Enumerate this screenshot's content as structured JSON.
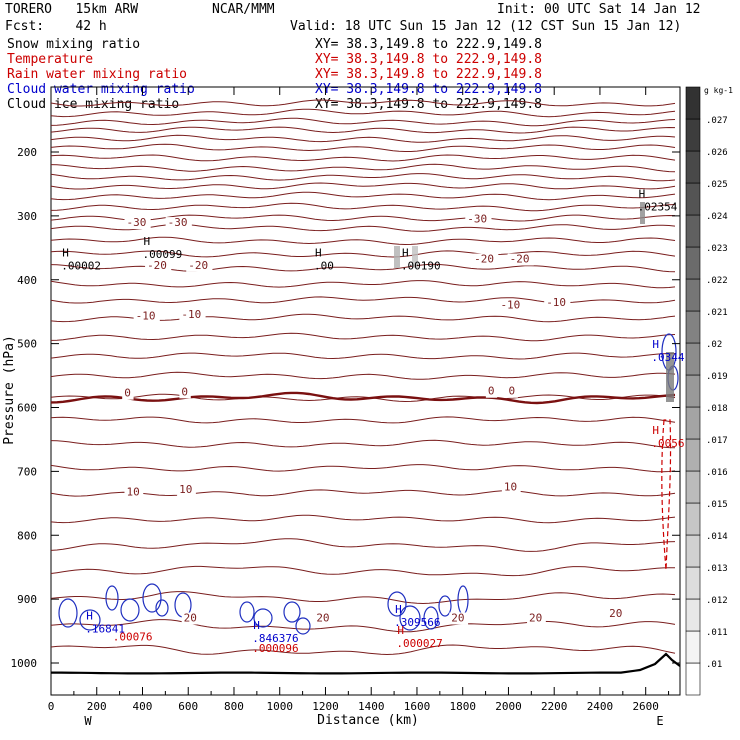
{
  "header": {
    "model": "TORERO   15km ARW",
    "center": "NCAR/MMM",
    "init": "Init: 00 UTC Sat 14 Jan 12",
    "fcst": "Fcst:    42 h",
    "valid": "Valid: 18 UTC Sun 15 Jan 12 (12 CST Sun 15 Jan 12)"
  },
  "fields": [
    {
      "label": "Snow mixing ratio",
      "xy": "XY=  38.3,149.8 to 222.9,149.8",
      "color": "#000000"
    },
    {
      "label": "Temperature",
      "xy": "XY=  38.3,149.8 to 222.9,149.8",
      "color": "#cc0000"
    },
    {
      "label": "Rain water mixing ratio",
      "xy": "XY=  38.3,149.8 to 222.9,149.8",
      "color": "#cc0000"
    },
    {
      "label": "Cloud water mixing ratio",
      "xy": "XY=  38.3,149.8 to 222.9,149.8",
      "color": "#0000cc"
    },
    {
      "label": "Cloud ice mixing ratio",
      "xy": "XY=  38.3,149.8 to 222.9,149.8",
      "color": "#000000"
    }
  ],
  "chart_data": {
    "type": "contour",
    "xlabel": "Distance (km)",
    "ylabel": "Pressure (hPa)",
    "xlim": [
      0,
      2750
    ],
    "ylim": [
      1050,
      100
    ],
    "x_ticks": [
      0,
      200,
      400,
      600,
      800,
      1000,
      1200,
      1400,
      1600,
      1800,
      2000,
      2200,
      2400,
      2600
    ],
    "y_ticks": [
      200,
      300,
      400,
      500,
      600,
      700,
      800,
      900,
      1000
    ],
    "end_labels": {
      "left": "W",
      "right": "E"
    },
    "colorbar": {
      "unit": "g kg-1",
      "ticks": [
        ".01",
        ".011",
        ".012",
        ".013",
        ".014",
        ".015",
        ".016",
        ".017",
        ".018",
        ".019",
        ".02",
        ".021",
        ".022",
        ".023",
        ".024",
        ".025",
        ".026",
        ".027"
      ]
    },
    "temperature_contours_C": [
      {
        "level": -30,
        "labels": [
          {
            "x": 330,
            "p": 316,
            "text": "-30"
          },
          {
            "x": 510,
            "p": 316,
            "text": "-30"
          },
          {
            "x": 1820,
            "p": 310,
            "text": "-30"
          }
        ]
      },
      {
        "level": -20,
        "labels": [
          {
            "x": 420,
            "p": 383,
            "text": "-20"
          },
          {
            "x": 600,
            "p": 383,
            "text": "-20"
          },
          {
            "x": 1850,
            "p": 373,
            "text": "-20"
          },
          {
            "x": 2005,
            "p": 373,
            "text": "-20"
          }
        ]
      },
      {
        "level": -10,
        "labels": [
          {
            "x": 370,
            "p": 462,
            "text": "-10"
          },
          {
            "x": 570,
            "p": 460,
            "text": "-10"
          },
          {
            "x": 1965,
            "p": 445,
            "text": "-10"
          },
          {
            "x": 2165,
            "p": 441,
            "text": "-10"
          }
        ]
      },
      {
        "level": 0,
        "labels": [
          {
            "x": 320,
            "p": 583,
            "text": "0"
          },
          {
            "x": 570,
            "p": 581,
            "text": "0"
          },
          {
            "x": 1910,
            "p": 580,
            "text": "0"
          },
          {
            "x": 2000,
            "p": 580,
            "text": "0"
          }
        ]
      },
      {
        "level": 10,
        "labels": [
          {
            "x": 330,
            "p": 738,
            "text": "10"
          },
          {
            "x": 560,
            "p": 734,
            "text": "10"
          },
          {
            "x": 1980,
            "p": 730,
            "text": "10"
          }
        ]
      },
      {
        "level": 20,
        "labels": [
          {
            "x": 580,
            "p": 935,
            "text": "20"
          },
          {
            "x": 1160,
            "p": 935,
            "text": "20"
          },
          {
            "x": 1750,
            "p": 935,
            "text": "20"
          },
          {
            "x": 2090,
            "p": 935,
            "text": "20"
          },
          {
            "x": 2440,
            "p": 928,
            "text": "20"
          }
        ]
      }
    ],
    "extrema": [
      {
        "x": 2565,
        "p": 274,
        "h": "H",
        "value": ".02354",
        "color": "#000000"
      },
      {
        "x": 400,
        "p": 349,
        "h": "H",
        "value": ".00099",
        "color": "#000000"
      },
      {
        "x": 45,
        "p": 367,
        "h": "H",
        "value": ".00002",
        "color": "#000000"
      },
      {
        "x": 1150,
        "p": 367,
        "h": "H",
        "value": ".00",
        "color": "#000000"
      },
      {
        "x": 1530,
        "p": 367,
        "h": "H",
        "value": ".00190",
        "color": "#000000"
      },
      {
        "x": 2625,
        "p": 510,
        "h": "H",
        "value": ".0344",
        "color": "#0000cc"
      },
      {
        "x": 2625,
        "p": 645,
        "h": "H",
        "value": ".0056",
        "color": "#cc0000"
      },
      {
        "x": 150,
        "p": 935,
        "h": "H",
        "value": ".16841",
        "color": "#0000cc"
      },
      {
        "x": 270,
        "p": 960,
        "h": "",
        "value": ".00076",
        "color": "#cc0000"
      },
      {
        "x": 880,
        "p": 950,
        "h": "H",
        "value": ".846376",
        "color": "#0000cc"
      },
      {
        "x": 880,
        "p": 978,
        "h": "",
        "value": ".000096",
        "color": "#cc0000"
      },
      {
        "x": 1500,
        "p": 925,
        "h": "H",
        "value": ".309566",
        "color": "#0000cc"
      },
      {
        "x": 1510,
        "p": 958,
        "h": "H",
        "value": ".000027",
        "color": "#cc0000"
      }
    ]
  }
}
